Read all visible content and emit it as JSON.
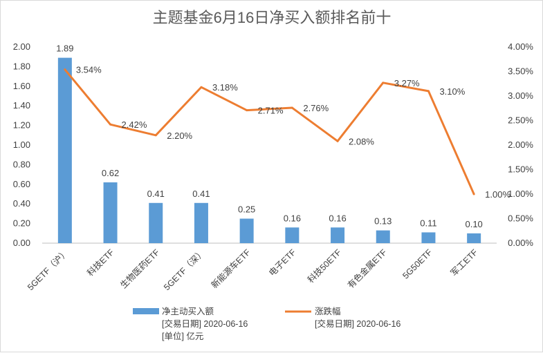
{
  "chart_data": {
    "type": "bar+line",
    "title": "主题基金6月16日净买入额排名前十",
    "categories": [
      "5GETF（沪）",
      "科技ETF",
      "生物医药ETF",
      "5GETF（深）",
      "新能源车ETF",
      "电子ETF",
      "科技50ETF",
      "有色金属ETF",
      "5G50ETF",
      "军工ETF"
    ],
    "series": [
      {
        "name": "净主动买入额",
        "type": "bar",
        "axis": "left",
        "color": "#5B9BD5",
        "values": [
          1.89,
          0.62,
          0.41,
          0.41,
          0.25,
          0.16,
          0.16,
          0.13,
          0.11,
          0.1
        ],
        "labels": [
          "1.89",
          "0.62",
          "0.41",
          "0.41",
          "0.25",
          "0.16",
          "0.16",
          "0.13",
          "0.11",
          "0.10"
        ],
        "legend_lines": [
          "净主动买入额",
          "[交易日期] 2020-06-16",
          "[单位] 亿元"
        ]
      },
      {
        "name": "涨跌幅",
        "type": "line",
        "axis": "right",
        "color": "#ED7D31",
        "values": [
          3.54,
          2.42,
          2.2,
          3.18,
          2.71,
          2.76,
          2.08,
          3.27,
          3.1,
          1.0
        ],
        "labels": [
          "3.54%",
          "2.42%",
          "2.20%",
          "3.18%",
          "2.71%",
          "2.76%",
          "2.08%",
          "3.27%",
          "3.10%",
          "1.00%"
        ],
        "legend_lines": [
          "涨跌幅",
          "[交易日期] 2020-06-16"
        ]
      }
    ],
    "y_left": {
      "min": 0,
      "max": 2.0,
      "ticks": [
        "0.00",
        "0.20",
        "0.40",
        "0.60",
        "0.80",
        "1.00",
        "1.20",
        "1.40",
        "1.60",
        "1.80",
        "2.00"
      ]
    },
    "y_right": {
      "min": 0,
      "max": 4.0,
      "ticks": [
        "0.00%",
        "0.50%",
        "1.00%",
        "1.50%",
        "2.00%",
        "2.50%",
        "3.00%",
        "3.50%",
        "4.00%"
      ]
    },
    "grid": false,
    "legend_position": "bottom"
  }
}
